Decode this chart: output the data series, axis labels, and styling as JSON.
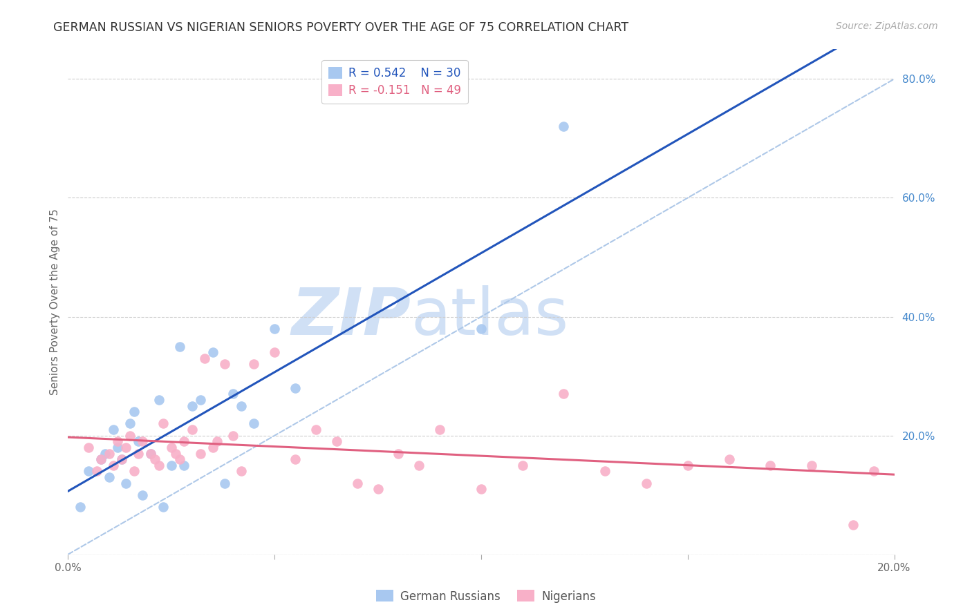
{
  "title": "GERMAN RUSSIAN VS NIGERIAN SENIORS POVERTY OVER THE AGE OF 75 CORRELATION CHART",
  "source": "Source: ZipAtlas.com",
  "ylabel": "Seniors Poverty Over the Age of 75",
  "xmin": 0.0,
  "xmax": 0.2,
  "ymin": 0.0,
  "ymax": 0.85,
  "right_yticks": [
    0.0,
    0.2,
    0.4,
    0.6,
    0.8
  ],
  "right_yticklabels": [
    "",
    "20.0%",
    "40.0%",
    "60.0%",
    "80.0%"
  ],
  "xticks": [
    0.0,
    0.05,
    0.1,
    0.15,
    0.2
  ],
  "xticklabels": [
    "0.0%",
    "",
    "",
    "",
    "20.0%"
  ],
  "legend_r1": "R = 0.542",
  "legend_n1": "N = 30",
  "legend_r2": "R = -0.151",
  "legend_n2": "N = 49",
  "blue_color": "#a8c8f0",
  "blue_line_color": "#2255bb",
  "pink_color": "#f8b0c8",
  "pink_line_color": "#e06080",
  "ref_line_color": "#aec8e8",
  "watermark_zip": "ZIP",
  "watermark_atlas": "atlas",
  "watermark_color": "#d0e0f5",
  "german_russian_x": [
    0.003,
    0.005,
    0.008,
    0.009,
    0.01,
    0.011,
    0.012,
    0.013,
    0.014,
    0.015,
    0.016,
    0.017,
    0.018,
    0.02,
    0.022,
    0.023,
    0.025,
    0.027,
    0.028,
    0.03,
    0.032,
    0.035,
    0.038,
    0.04,
    0.042,
    0.045,
    0.05,
    0.055,
    0.1,
    0.12
  ],
  "german_russian_y": [
    0.08,
    0.14,
    0.16,
    0.17,
    0.13,
    0.21,
    0.18,
    0.16,
    0.12,
    0.22,
    0.24,
    0.19,
    0.1,
    0.17,
    0.26,
    0.08,
    0.15,
    0.35,
    0.15,
    0.25,
    0.26,
    0.34,
    0.12,
    0.27,
    0.25,
    0.22,
    0.38,
    0.28,
    0.38,
    0.72
  ],
  "nigerian_x": [
    0.005,
    0.007,
    0.008,
    0.01,
    0.011,
    0.012,
    0.013,
    0.014,
    0.015,
    0.016,
    0.017,
    0.018,
    0.02,
    0.021,
    0.022,
    0.023,
    0.025,
    0.026,
    0.027,
    0.028,
    0.03,
    0.032,
    0.033,
    0.035,
    0.036,
    0.038,
    0.04,
    0.042,
    0.045,
    0.05,
    0.055,
    0.06,
    0.065,
    0.07,
    0.075,
    0.08,
    0.085,
    0.09,
    0.1,
    0.11,
    0.12,
    0.13,
    0.14,
    0.15,
    0.16,
    0.17,
    0.18,
    0.19,
    0.195
  ],
  "nigerian_y": [
    0.18,
    0.14,
    0.16,
    0.17,
    0.15,
    0.19,
    0.16,
    0.18,
    0.2,
    0.14,
    0.17,
    0.19,
    0.17,
    0.16,
    0.15,
    0.22,
    0.18,
    0.17,
    0.16,
    0.19,
    0.21,
    0.17,
    0.33,
    0.18,
    0.19,
    0.32,
    0.2,
    0.14,
    0.32,
    0.34,
    0.16,
    0.21,
    0.19,
    0.12,
    0.11,
    0.17,
    0.15,
    0.21,
    0.11,
    0.15,
    0.27,
    0.14,
    0.12,
    0.15,
    0.16,
    0.15,
    0.15,
    0.05,
    0.14
  ]
}
